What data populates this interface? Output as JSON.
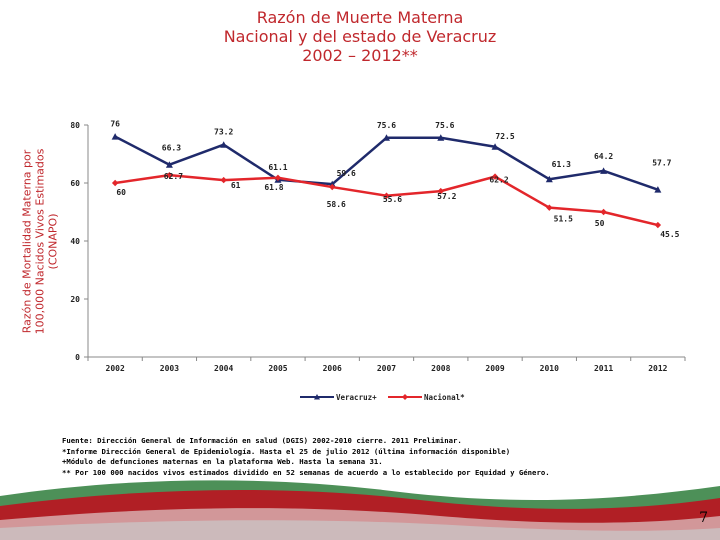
{
  "title_lines": [
    "Razón de Muerte Materna",
    "Nacional  y del estado de Veracruz",
    "2002 – 2012**"
  ],
  "ylabel_lines": [
    "Razón de Mortalidad Materna por",
    "100,000 Nacidos Vivos Estimados",
    "(CONAPO)"
  ],
  "chart_data": {
    "type": "line",
    "title": "Razón de Muerte Materna Nacional  y del estado de Veracruz 2002 – 2012**",
    "xlabel": "",
    "ylabel": "Razón de Mortalidad Materna por 100,000 Nacidos Vivos Estimados (CONAPO)",
    "categories": [
      "2002",
      "2003",
      "2004",
      "2005",
      "2006",
      "2007",
      "2008",
      "2009",
      "2010",
      "2011",
      "2012"
    ],
    "ylim": [
      0,
      80
    ],
    "yticks": [
      0,
      20,
      40,
      60,
      80
    ],
    "grid": false,
    "legend_position": "bottom",
    "series": [
      {
        "name": "Veracruz+",
        "color": "#1f2a6b",
        "values": [
          76,
          66.3,
          73.2,
          61.1,
          59.6,
          75.6,
          75.6,
          72.5,
          61.3,
          64.2,
          57.7
        ],
        "labels": [
          "76",
          "66.3",
          "73.2",
          "61.1",
          "59.6",
          "75.6",
          "75.6",
          "72.5",
          "61.3",
          "64.2",
          "57.7"
        ]
      },
      {
        "name": "Nacional*",
        "color": "#e3262b",
        "values": [
          60,
          62.7,
          61,
          61.8,
          58.6,
          55.6,
          57.2,
          62.2,
          51.5,
          50,
          45.5
        ],
        "labels": [
          "60",
          "62.7",
          "61",
          "61.8",
          "58.6",
          "55.6",
          "57.2",
          "62.2",
          "51.5",
          "50",
          "45.5"
        ]
      }
    ]
  },
  "footnotes": [
    "Fuente: Dirección General de Información en salud (DGIS) 2002-2010 cierre. 2011 Preliminar.",
    "*Informe Dirección General de Epidemiología. Hasta el  25 de julio 2012 (última información disponible)",
    "+Módulo de defunciones maternas en la plataforma Web. Hasta la semana 31.",
    "** Por 100 000 nacidos vivos estimados dividido en 52 semanas de acuerdo a lo establecido por Equidad y Género."
  ],
  "page_number": "7",
  "colors": {
    "title": "#c0282d",
    "veracruz": "#1f2a6b",
    "nacional": "#e3262b",
    "band_red": "#b11f25",
    "band_green": "#2e7d3b"
  }
}
